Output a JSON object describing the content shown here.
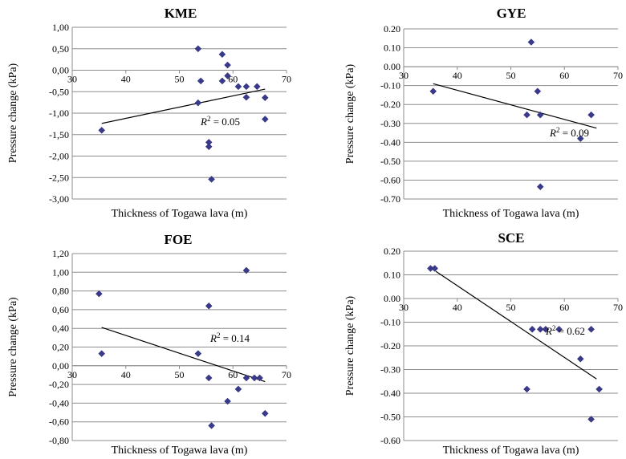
{
  "chart_data": [
    {
      "type": "scatter",
      "title": "KME",
      "xlabel": "Thickness of Togawa lava (m)",
      "ylabel": "Pressure change (kPa)",
      "xlim": [
        30,
        70
      ],
      "ylim": [
        -3.0,
        1.0
      ],
      "ytick_step": 0.5,
      "xticks": [
        "30",
        "40",
        "50",
        "60",
        "70"
      ],
      "yticks": [
        "1,00",
        "0,50",
        "0,00",
        "-0,50",
        "-1,00",
        "-1,50",
        "-2,00",
        "-2,50",
        "-3,00"
      ],
      "grid": true,
      "points": [
        [
          35.5,
          -1.4
        ],
        [
          53.5,
          0.5
        ],
        [
          54.0,
          -0.25
        ],
        [
          53.5,
          -0.76
        ],
        [
          55.5,
          -1.68
        ],
        [
          55.5,
          -1.78
        ],
        [
          56.0,
          -2.54
        ],
        [
          58.0,
          0.37
        ],
        [
          58.0,
          -0.25
        ],
        [
          59.0,
          0.12
        ],
        [
          59.0,
          -0.13
        ],
        [
          61.0,
          -0.38
        ],
        [
          62.5,
          -0.38
        ],
        [
          62.5,
          -0.63
        ],
        [
          64.5,
          -0.38
        ],
        [
          66.0,
          -0.64
        ],
        [
          66.0,
          -1.14
        ]
      ],
      "trendline": [
        [
          35.5,
          -1.24
        ],
        [
          66.0,
          -0.44
        ]
      ],
      "r2_prefix": "R",
      "r2_value": "= 0.05"
    },
    {
      "type": "scatter",
      "title": "GYE",
      "xlabel": "Thickness of Togawa lava (m)",
      "ylabel": "Pressure change (kPa)",
      "xlim": [
        30,
        70
      ],
      "ylim": [
        -0.7,
        0.2
      ],
      "ytick_step": 0.1,
      "xticks": [
        "30",
        "40",
        "50",
        "60",
        "70"
      ],
      "yticks": [
        "0.20",
        "0.10",
        "0.00",
        "-0.10",
        "-0.20",
        "-0.30",
        "-0.40",
        "-0.50",
        "-0.60",
        "-0.70"
      ],
      "grid": true,
      "points": [
        [
          35.5,
          -0.13
        ],
        [
          53.0,
          -0.255
        ],
        [
          53.8,
          0.13
        ],
        [
          55.0,
          -0.13
        ],
        [
          55.5,
          -0.255
        ],
        [
          55.5,
          -0.635
        ],
        [
          63.0,
          -0.38
        ],
        [
          65.0,
          -0.255
        ]
      ],
      "trendline": [
        [
          35.5,
          -0.09
        ],
        [
          66.0,
          -0.325
        ]
      ],
      "r2_prefix": "R",
      "r2_value": "= 0.09"
    },
    {
      "type": "scatter",
      "title": "FOE",
      "xlabel": "Thickness of Togawa lava (m)",
      "ylabel": "Pressure change (kPa)",
      "xlim": [
        30,
        70
      ],
      "ylim": [
        -0.8,
        1.2
      ],
      "ytick_step": 0.2,
      "xticks": [
        "30",
        "40",
        "50",
        "60",
        "70"
      ],
      "yticks": [
        "1,20",
        "1,00",
        "0,80",
        "0,60",
        "0,40",
        "0,20",
        "0,00",
        "-0,20",
        "-0,40",
        "-0,60",
        "-0,80"
      ],
      "grid": true,
      "points": [
        [
          35.0,
          0.77
        ],
        [
          35.5,
          0.13
        ],
        [
          53.5,
          0.13
        ],
        [
          55.5,
          0.64
        ],
        [
          55.5,
          -0.13
        ],
        [
          56.0,
          -0.64
        ],
        [
          59.0,
          -0.38
        ],
        [
          61.0,
          -0.25
        ],
        [
          62.5,
          1.02
        ],
        [
          62.5,
          -0.13
        ],
        [
          64.0,
          -0.13
        ],
        [
          65.0,
          -0.13
        ],
        [
          66.0,
          -0.51
        ]
      ],
      "trendline": [
        [
          35.5,
          0.41
        ],
        [
          66.0,
          -0.17
        ]
      ],
      "r2_prefix": "R",
      "r2_value": "= 0.14"
    },
    {
      "type": "scatter",
      "title": "SCE",
      "xlabel": "Thickness of Togawa lava (m)",
      "ylabel": "Pressure change (kPa)",
      "xlim": [
        30,
        70
      ],
      "ylim": [
        -0.6,
        0.2
      ],
      "ytick_step": 0.1,
      "xticks": [
        "30",
        "40",
        "50",
        "60",
        "70"
      ],
      "yticks": [
        "0.20",
        "0.10",
        "0.00",
        "-0.10",
        "-0.20",
        "-0.30",
        "-0.40",
        "-0.50",
        "-0.60"
      ],
      "grid": true,
      "points": [
        [
          35.0,
          0.127
        ],
        [
          35.8,
          0.127
        ],
        [
          53.0,
          -0.383
        ],
        [
          54.0,
          -0.13
        ],
        [
          55.5,
          -0.13
        ],
        [
          56.5,
          -0.13
        ],
        [
          59.0,
          -0.13
        ],
        [
          63.0,
          -0.255
        ],
        [
          65.0,
          -0.13
        ],
        [
          65.0,
          -0.51
        ],
        [
          66.5,
          -0.383
        ]
      ],
      "trendline": [
        [
          36.0,
          0.115
        ],
        [
          66.0,
          -0.34
        ]
      ],
      "r2_prefix": "R",
      "r2_value": "= 0.62"
    }
  ]
}
